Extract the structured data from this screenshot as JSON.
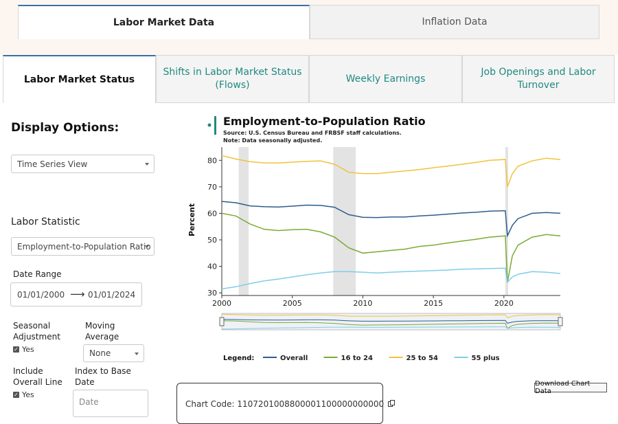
{
  "top_tabs": [
    {
      "label": "Labor Market Data",
      "active": true
    },
    {
      "label": "Inflation Data",
      "active": false
    }
  ],
  "sub_tabs": [
    {
      "label": "Labor Market Status",
      "active": true
    },
    {
      "label": "Shifts in Labor Market Status (Flows)",
      "active": false
    },
    {
      "label": "Weekly Earnings",
      "active": false
    },
    {
      "label": "Job Openings and Labor Turnover",
      "active": false
    }
  ],
  "sidebar": {
    "display_options_title": "Display Options:",
    "view_select": "Time Series View",
    "labor_statistic_label": "Labor Statistic",
    "statistic_select": "Employment-to-Population Ratio (...",
    "date_range_label": "Date Range",
    "date_start": "01/01/2000",
    "date_end": "01/01/2024",
    "seasonal_label": "Seasonal Adjustment",
    "seasonal_value": "Yes",
    "moving_avg_label": "Moving Average",
    "moving_avg_value": "None",
    "include_overall_label": "Include Overall Line",
    "include_overall_value": "Yes",
    "index_base_label": "Index to Base Date",
    "index_base_placeholder": "Date"
  },
  "chart_code_label": "Chart Code:",
  "chart_code_value": "1107201008800001100000000000",
  "download_label": "Download Chart Data",
  "colors": {
    "accent_teal": "#1f8a80",
    "active_tab_border": "#3a6fa8"
  },
  "icons": {
    "arrow": "right-arrow-icon",
    "copy": "copy-icon",
    "dropdown": "chevron-down-icon"
  },
  "chart_data": {
    "type": "line",
    "title": "Employment-to-Population Ratio",
    "source": "Source: U.S. Census Bureau and FRBSF staff calculations.",
    "note": "Note: Data seasonally adjusted.",
    "ylabel": "Percent",
    "xlabel": "",
    "xlim": [
      2000,
      2024
    ],
    "ylim": [
      29,
      85
    ],
    "yticks": [
      30,
      40,
      50,
      60,
      70,
      80
    ],
    "xticks": [
      2000,
      2005,
      2010,
      2015,
      2020
    ],
    "recessions": [
      [
        2001.2,
        2001.9
      ],
      [
        2007.9,
        2009.5
      ],
      [
        2020.1,
        2020.3
      ]
    ],
    "legend_title": "Legend:",
    "legend_position": "bottom",
    "series": [
      {
        "name": "Overall",
        "color": "#2c5c8c",
        "x": [
          2000,
          2001,
          2002,
          2003,
          2004,
          2005,
          2006,
          2007,
          2008,
          2009,
          2010,
          2011,
          2012,
          2013,
          2014,
          2015,
          2016,
          2017,
          2018,
          2019,
          2020.1,
          2020.25,
          2020.6,
          2021,
          2022,
          2023,
          2024
        ],
        "y": [
          64.5,
          64.0,
          62.8,
          62.5,
          62.4,
          62.7,
          63.1,
          63.0,
          62.3,
          59.5,
          58.5,
          58.4,
          58.6,
          58.6,
          59.0,
          59.3,
          59.7,
          60.1,
          60.4,
          60.8,
          61.0,
          51.5,
          55.5,
          58.0,
          60.0,
          60.3,
          60.0
        ]
      },
      {
        "name": "16 to 24",
        "color": "#7aab35",
        "x": [
          2000,
          2001,
          2002,
          2003,
          2004,
          2005,
          2006,
          2007,
          2008,
          2009,
          2010,
          2011,
          2012,
          2013,
          2014,
          2015,
          2016,
          2017,
          2018,
          2019,
          2020.1,
          2020.25,
          2020.6,
          2021,
          2022,
          2023,
          2024
        ],
        "y": [
          60.0,
          59.0,
          56.0,
          54.0,
          53.5,
          53.8,
          54.0,
          53.0,
          51.0,
          47.0,
          45.0,
          45.5,
          46.0,
          46.5,
          47.5,
          48.0,
          48.8,
          49.5,
          50.2,
          51.0,
          51.5,
          34.0,
          44.0,
          48.0,
          51.0,
          52.0,
          51.5
        ]
      },
      {
        "name": "25 to 54",
        "color": "#f2c23a",
        "x": [
          2000,
          2001,
          2002,
          2003,
          2004,
          2005,
          2006,
          2007,
          2008,
          2009,
          2010,
          2011,
          2012,
          2013,
          2014,
          2015,
          2016,
          2017,
          2018,
          2019,
          2020.1,
          2020.25,
          2020.6,
          2021,
          2022,
          2023,
          2024
        ],
        "y": [
          81.8,
          80.5,
          79.5,
          79.0,
          79.0,
          79.3,
          79.6,
          79.8,
          78.5,
          75.5,
          75.0,
          75.0,
          75.5,
          76.0,
          76.5,
          77.2,
          77.8,
          78.5,
          79.2,
          80.0,
          80.3,
          70.0,
          75.0,
          77.8,
          79.8,
          80.8,
          80.3
        ]
      },
      {
        "name": "55 plus",
        "color": "#7fcde8",
        "x": [
          2000,
          2001,
          2002,
          2003,
          2004,
          2005,
          2006,
          2007,
          2008,
          2009,
          2010,
          2011,
          2012,
          2013,
          2014,
          2015,
          2016,
          2017,
          2018,
          2019,
          2020.1,
          2020.25,
          2020.6,
          2021,
          2022,
          2023,
          2024
        ],
        "y": [
          31.5,
          32.3,
          33.5,
          34.5,
          35.2,
          36.0,
          36.8,
          37.5,
          38.0,
          38.0,
          37.8,
          37.5,
          37.8,
          38.0,
          38.2,
          38.4,
          38.6,
          38.9,
          39.0,
          39.2,
          39.3,
          34.0,
          36.0,
          37.0,
          38.0,
          37.8,
          37.3
        ]
      }
    ]
  }
}
